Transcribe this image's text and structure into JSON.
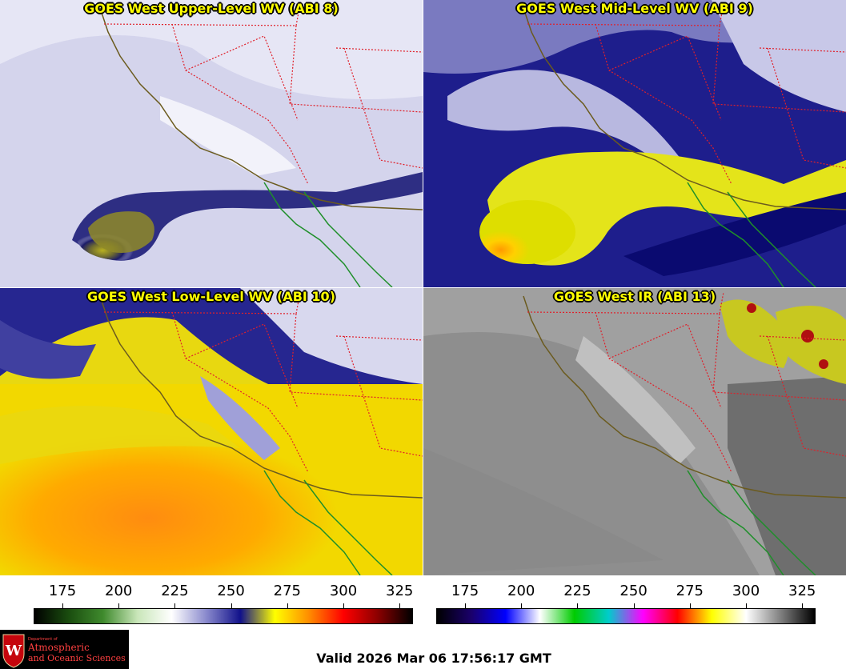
{
  "panels": [
    {
      "title": "GOES West Upper-Level WV (ABI 8)"
    },
    {
      "title": "GOES West Mid-Level WV (ABI 9)"
    },
    {
      "title": "GOES West Low-Level WV (ABI 10)"
    },
    {
      "title": "GOES West IR (ABI 13)"
    }
  ],
  "colorbar_ticks": [
    "175",
    "200",
    "225",
    "250",
    "275",
    "300",
    "325"
  ],
  "colors": {
    "state_border": "#e0202a",
    "coastline": "#6b5b1e",
    "mexico_coast": "#1f8f2a",
    "wv_colorbar": [
      "#000000",
      "#1a4d0f",
      "#3f8a2d",
      "#c9e6b9",
      "#ffffff",
      "#8a8acd",
      "#11118a",
      "#ffff00",
      "#ff8c00",
      "#ff0000",
      "#8b0000",
      "#000000"
    ],
    "ir_colorbar": [
      "#000000",
      "#1a006b",
      "#0000ff",
      "#ffffff",
      "#00cc00",
      "#00cccc",
      "#ff00ff",
      "#ff0000",
      "#ffff00",
      "#ffffff",
      "#808080",
      "#000000"
    ]
  },
  "logo": {
    "dept": "Department of",
    "line1": "Atmospheric",
    "line2": "and Oceanic Sciences"
  },
  "valid_text": "Valid 2026 Mar 06 17:56:17 GMT"
}
